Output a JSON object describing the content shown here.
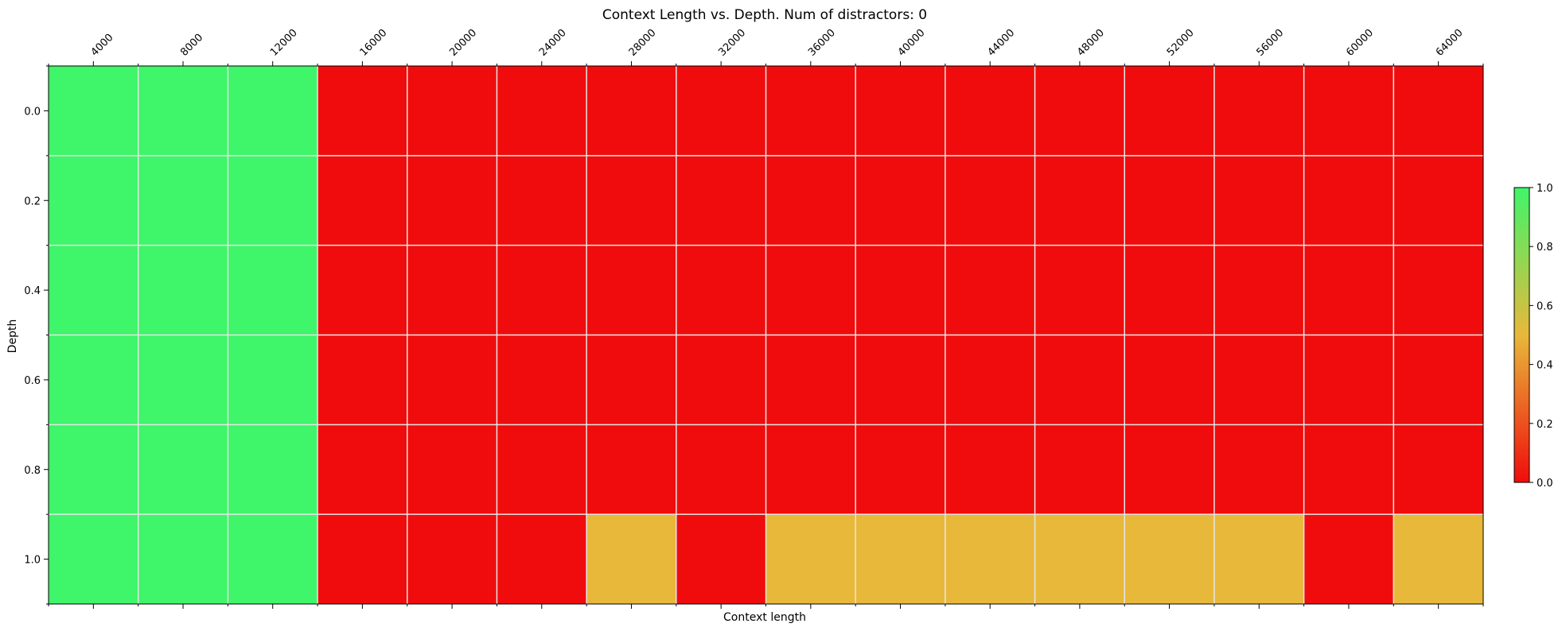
{
  "chart_data": {
    "type": "heatmap",
    "title": "Context Length vs. Depth. Num of distractors: 0",
    "xlabel": "Context length",
    "ylabel": "Depth",
    "x_categories": [
      "4000",
      "8000",
      "12000",
      "16000",
      "20000",
      "24000",
      "28000",
      "32000",
      "36000",
      "40000",
      "44000",
      "48000",
      "52000",
      "56000",
      "60000",
      "64000"
    ],
    "y_categories": [
      "0.0",
      "0.2",
      "0.4",
      "0.6",
      "0.8",
      "1.0"
    ],
    "values": [
      [
        1,
        1,
        1,
        0,
        0,
        0,
        0,
        0,
        0,
        0,
        0,
        0,
        0,
        0,
        0,
        0
      ],
      [
        1,
        1,
        1,
        0,
        0,
        0,
        0,
        0,
        0,
        0,
        0,
        0,
        0,
        0,
        0,
        0
      ],
      [
        1,
        1,
        1,
        0,
        0,
        0,
        0,
        0,
        0,
        0,
        0,
        0,
        0,
        0,
        0,
        0
      ],
      [
        1,
        1,
        1,
        0,
        0,
        0,
        0,
        0,
        0,
        0,
        0,
        0,
        0,
        0,
        0,
        0
      ],
      [
        1,
        1,
        1,
        0,
        0,
        0,
        0,
        0,
        0,
        0,
        0,
        0,
        0,
        0,
        0,
        0
      ],
      [
        1,
        1,
        1,
        0,
        0,
        0,
        0.5,
        0,
        0.5,
        0.5,
        0.5,
        0.5,
        0.5,
        0.5,
        0,
        0.5
      ]
    ],
    "colorbar": {
      "range": [
        0,
        1
      ],
      "ticks": [
        "0.0",
        "0.2",
        "0.4",
        "0.6",
        "0.8",
        "1.0"
      ],
      "colors": [
        "#F00C0C",
        "#E8B83A",
        "#3FF56A"
      ]
    },
    "grid": true,
    "x_tick_position": "top"
  }
}
